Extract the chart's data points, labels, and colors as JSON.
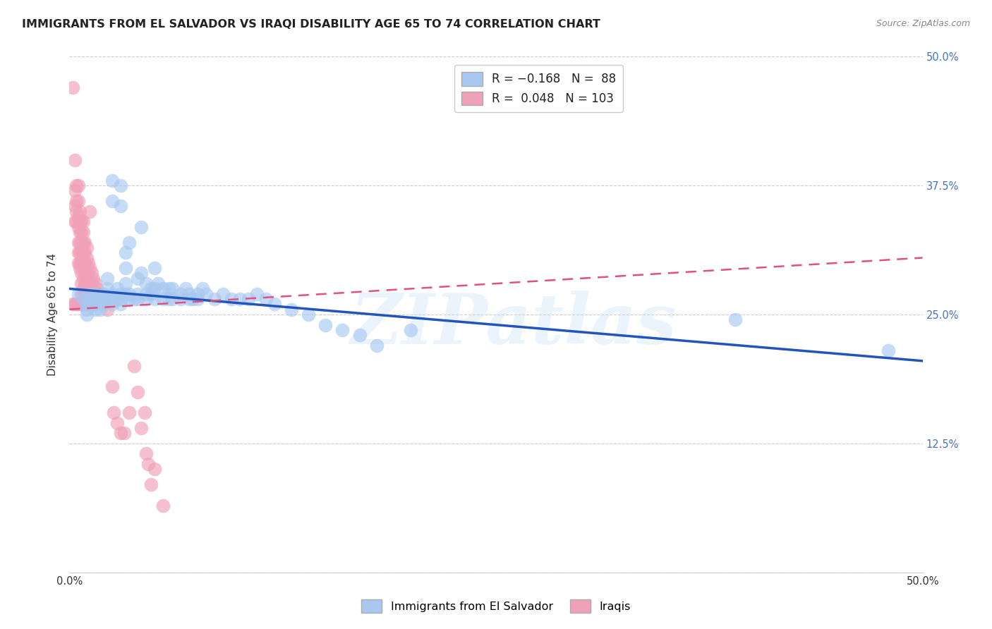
{
  "title": "IMMIGRANTS FROM EL SALVADOR VS IRAQI DISABILITY AGE 65 TO 74 CORRELATION CHART",
  "source": "Source: ZipAtlas.com",
  "ylabel": "Disability Age 65 to 74",
  "legend_blue_R": "-0.168",
  "legend_blue_N": "88",
  "legend_pink_R": "0.048",
  "legend_pink_N": "103",
  "legend_label_blue": "Immigrants from El Salvador",
  "legend_label_pink": "Iraqis",
  "blue_color": "#A8C8F0",
  "pink_color": "#F0A0B8",
  "blue_line_color": "#2255BB",
  "pink_line_color": "#E05080",
  "xlim": [
    0.0,
    0.5
  ],
  "ylim": [
    0.0,
    0.5
  ],
  "blue_trend": {
    "x_start": 0.0,
    "y_start": 0.275,
    "x_end": 0.5,
    "y_end": 0.205
  },
  "pink_trend": {
    "x_start": 0.0,
    "y_start": 0.255,
    "x_end": 0.5,
    "y_end": 0.305
  },
  "background_color": "#FFFFFF",
  "grid_color": "#CCCCCC",
  "title_fontsize": 11.5,
  "axis_label_fontsize": 11,
  "tick_fontsize": 10.5,
  "right_tick_color": "#4472C4",
  "watermark": "ZIPatlas",
  "blue_scatter": [
    [
      0.005,
      0.27
    ],
    [
      0.008,
      0.265
    ],
    [
      0.01,
      0.26
    ],
    [
      0.01,
      0.255
    ],
    [
      0.01,
      0.25
    ],
    [
      0.012,
      0.27
    ],
    [
      0.012,
      0.265
    ],
    [
      0.015,
      0.27
    ],
    [
      0.015,
      0.265
    ],
    [
      0.015,
      0.26
    ],
    [
      0.015,
      0.255
    ],
    [
      0.018,
      0.265
    ],
    [
      0.018,
      0.26
    ],
    [
      0.018,
      0.255
    ],
    [
      0.02,
      0.27
    ],
    [
      0.02,
      0.265
    ],
    [
      0.02,
      0.26
    ],
    [
      0.022,
      0.285
    ],
    [
      0.022,
      0.275
    ],
    [
      0.022,
      0.265
    ],
    [
      0.025,
      0.38
    ],
    [
      0.025,
      0.36
    ],
    [
      0.025,
      0.27
    ],
    [
      0.025,
      0.265
    ],
    [
      0.025,
      0.26
    ],
    [
      0.028,
      0.275
    ],
    [
      0.028,
      0.265
    ],
    [
      0.03,
      0.375
    ],
    [
      0.03,
      0.355
    ],
    [
      0.03,
      0.27
    ],
    [
      0.03,
      0.265
    ],
    [
      0.03,
      0.26
    ],
    [
      0.033,
      0.31
    ],
    [
      0.033,
      0.295
    ],
    [
      0.033,
      0.28
    ],
    [
      0.033,
      0.27
    ],
    [
      0.035,
      0.32
    ],
    [
      0.035,
      0.27
    ],
    [
      0.035,
      0.265
    ],
    [
      0.038,
      0.265
    ],
    [
      0.04,
      0.285
    ],
    [
      0.04,
      0.27
    ],
    [
      0.04,
      0.265
    ],
    [
      0.042,
      0.335
    ],
    [
      0.042,
      0.29
    ],
    [
      0.045,
      0.28
    ],
    [
      0.045,
      0.27
    ],
    [
      0.045,
      0.265
    ],
    [
      0.048,
      0.275
    ],
    [
      0.048,
      0.27
    ],
    [
      0.05,
      0.295
    ],
    [
      0.05,
      0.275
    ],
    [
      0.05,
      0.265
    ],
    [
      0.052,
      0.28
    ],
    [
      0.055,
      0.275
    ],
    [
      0.055,
      0.265
    ],
    [
      0.058,
      0.275
    ],
    [
      0.058,
      0.265
    ],
    [
      0.06,
      0.275
    ],
    [
      0.06,
      0.265
    ],
    [
      0.065,
      0.27
    ],
    [
      0.065,
      0.265
    ],
    [
      0.068,
      0.275
    ],
    [
      0.07,
      0.27
    ],
    [
      0.07,
      0.265
    ],
    [
      0.072,
      0.265
    ],
    [
      0.075,
      0.27
    ],
    [
      0.075,
      0.265
    ],
    [
      0.078,
      0.275
    ],
    [
      0.08,
      0.27
    ],
    [
      0.085,
      0.265
    ],
    [
      0.09,
      0.27
    ],
    [
      0.095,
      0.265
    ],
    [
      0.1,
      0.265
    ],
    [
      0.105,
      0.265
    ],
    [
      0.11,
      0.27
    ],
    [
      0.115,
      0.265
    ],
    [
      0.12,
      0.26
    ],
    [
      0.13,
      0.255
    ],
    [
      0.14,
      0.25
    ],
    [
      0.15,
      0.24
    ],
    [
      0.16,
      0.235
    ],
    [
      0.17,
      0.23
    ],
    [
      0.18,
      0.22
    ],
    [
      0.2,
      0.235
    ],
    [
      0.39,
      0.245
    ],
    [
      0.48,
      0.215
    ]
  ],
  "pink_scatter": [
    [
      0.002,
      0.47
    ],
    [
      0.003,
      0.4
    ],
    [
      0.003,
      0.37
    ],
    [
      0.003,
      0.355
    ],
    [
      0.003,
      0.34
    ],
    [
      0.004,
      0.375
    ],
    [
      0.004,
      0.36
    ],
    [
      0.004,
      0.35
    ],
    [
      0.004,
      0.34
    ],
    [
      0.005,
      0.375
    ],
    [
      0.005,
      0.36
    ],
    [
      0.005,
      0.345
    ],
    [
      0.005,
      0.335
    ],
    [
      0.005,
      0.32
    ],
    [
      0.005,
      0.31
    ],
    [
      0.005,
      0.3
    ],
    [
      0.006,
      0.35
    ],
    [
      0.006,
      0.34
    ],
    [
      0.006,
      0.33
    ],
    [
      0.006,
      0.32
    ],
    [
      0.006,
      0.31
    ],
    [
      0.006,
      0.3
    ],
    [
      0.006,
      0.295
    ],
    [
      0.007,
      0.34
    ],
    [
      0.007,
      0.33
    ],
    [
      0.007,
      0.32
    ],
    [
      0.007,
      0.31
    ],
    [
      0.007,
      0.3
    ],
    [
      0.007,
      0.29
    ],
    [
      0.007,
      0.28
    ],
    [
      0.007,
      0.27
    ],
    [
      0.008,
      0.34
    ],
    [
      0.008,
      0.33
    ],
    [
      0.008,
      0.32
    ],
    [
      0.008,
      0.31
    ],
    [
      0.008,
      0.3
    ],
    [
      0.008,
      0.295
    ],
    [
      0.008,
      0.285
    ],
    [
      0.008,
      0.275
    ],
    [
      0.008,
      0.27
    ],
    [
      0.009,
      0.32
    ],
    [
      0.009,
      0.31
    ],
    [
      0.009,
      0.3
    ],
    [
      0.009,
      0.29
    ],
    [
      0.009,
      0.28
    ],
    [
      0.009,
      0.275
    ],
    [
      0.009,
      0.27
    ],
    [
      0.009,
      0.265
    ],
    [
      0.01,
      0.315
    ],
    [
      0.01,
      0.305
    ],
    [
      0.01,
      0.295
    ],
    [
      0.01,
      0.285
    ],
    [
      0.01,
      0.275
    ],
    [
      0.01,
      0.27
    ],
    [
      0.01,
      0.265
    ],
    [
      0.01,
      0.26
    ],
    [
      0.011,
      0.3
    ],
    [
      0.011,
      0.29
    ],
    [
      0.011,
      0.28
    ],
    [
      0.011,
      0.275
    ],
    [
      0.011,
      0.27
    ],
    [
      0.011,
      0.265
    ],
    [
      0.012,
      0.35
    ],
    [
      0.012,
      0.295
    ],
    [
      0.012,
      0.28
    ],
    [
      0.012,
      0.275
    ],
    [
      0.012,
      0.27
    ],
    [
      0.013,
      0.29
    ],
    [
      0.013,
      0.28
    ],
    [
      0.013,
      0.275
    ],
    [
      0.014,
      0.285
    ],
    [
      0.014,
      0.275
    ],
    [
      0.015,
      0.28
    ],
    [
      0.015,
      0.27
    ],
    [
      0.016,
      0.275
    ],
    [
      0.016,
      0.27
    ],
    [
      0.017,
      0.27
    ],
    [
      0.018,
      0.265
    ],
    [
      0.019,
      0.27
    ],
    [
      0.02,
      0.265
    ],
    [
      0.022,
      0.255
    ],
    [
      0.025,
      0.18
    ],
    [
      0.026,
      0.155
    ],
    [
      0.028,
      0.145
    ],
    [
      0.03,
      0.135
    ],
    [
      0.032,
      0.135
    ],
    [
      0.035,
      0.155
    ],
    [
      0.038,
      0.2
    ],
    [
      0.04,
      0.175
    ],
    [
      0.042,
      0.14
    ],
    [
      0.044,
      0.155
    ],
    [
      0.045,
      0.115
    ],
    [
      0.046,
      0.105
    ],
    [
      0.048,
      0.085
    ],
    [
      0.05,
      0.1
    ],
    [
      0.055,
      0.065
    ],
    [
      0.01,
      0.26
    ],
    [
      0.008,
      0.26
    ],
    [
      0.006,
      0.26
    ],
    [
      0.004,
      0.26
    ],
    [
      0.002,
      0.26
    ],
    [
      0.003,
      0.26
    ],
    [
      0.005,
      0.26
    ],
    [
      0.007,
      0.26
    ],
    [
      0.009,
      0.26
    ],
    [
      0.011,
      0.26
    ],
    [
      0.013,
      0.26
    ]
  ]
}
